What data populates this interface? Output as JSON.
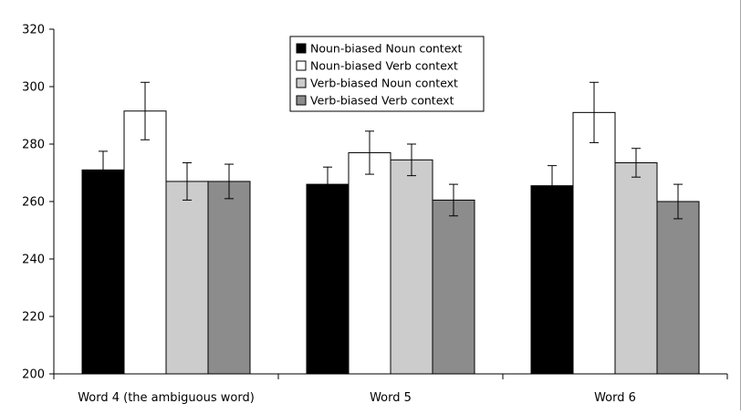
{
  "chart_data": {
    "type": "bar",
    "title": "",
    "xlabel": "",
    "ylabel": "",
    "ylim": [
      200,
      320
    ],
    "yticks": [
      200,
      220,
      240,
      260,
      280,
      300,
      320
    ],
    "grid": false,
    "legend_position": "top-center",
    "categories": [
      "Word 4 (the ambiguous word)",
      "Word 5",
      "Word 6"
    ],
    "series": [
      {
        "name": "Noun-biased Noun context",
        "color": "#000000",
        "values": [
          271,
          266,
          265.5
        ],
        "error": [
          6.5,
          6,
          7
        ]
      },
      {
        "name": "Noun-biased Verb context",
        "color": "#ffffff",
        "values": [
          291.5,
          277,
          291
        ],
        "error": [
          10,
          7.5,
          10.5
        ]
      },
      {
        "name": "Verb-biased Noun context",
        "color": "#cccccc",
        "values": [
          267,
          274.5,
          273.5
        ],
        "error": [
          6.5,
          5.5,
          5
        ]
      },
      {
        "name": "Verb-biased Verb context",
        "color": "#8c8c8c",
        "values": [
          267,
          260.5,
          260
        ],
        "error": [
          6,
          5.5,
          6
        ]
      }
    ]
  }
}
